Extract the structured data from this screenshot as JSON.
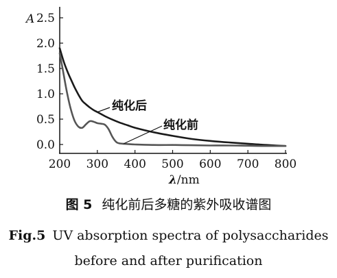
{
  "chart_data": {
    "type": "line",
    "ylabel": "A",
    "xlabel_symbol": "λ",
    "xlabel_unit": "/nm",
    "xlim": [
      200,
      800
    ],
    "ylim": [
      -0.05,
      2.6
    ],
    "xticks": [
      "200",
      "300",
      "400",
      "500",
      "600",
      "700",
      "800"
    ],
    "yticks": [
      "0.0",
      "0.5",
      "1.0",
      "1.5",
      "2.0",
      "2.5"
    ],
    "grid": false,
    "legend": "none",
    "series": [
      {
        "name": "纯化后",
        "color": "#1a1a1a",
        "x": [
          200,
          210,
          220,
          230,
          240,
          250,
          260,
          270,
          280,
          290,
          300,
          320,
          340,
          360,
          380,
          400,
          450,
          500,
          550,
          600,
          650,
          700,
          750,
          800
        ],
        "y": [
          1.9,
          1.65,
          1.45,
          1.28,
          1.12,
          0.98,
          0.86,
          0.79,
          0.73,
          0.68,
          0.64,
          0.56,
          0.49,
          0.43,
          0.38,
          0.33,
          0.24,
          0.17,
          0.11,
          0.07,
          0.04,
          0.015,
          -0.01,
          -0.03
        ]
      },
      {
        "name": "纯化前",
        "color": "#555555",
        "x": [
          200,
          210,
          220,
          230,
          240,
          250,
          260,
          270,
          280,
          290,
          300,
          310,
          320,
          330,
          340,
          350,
          360,
          380,
          400,
          450,
          500,
          550,
          600,
          650,
          700,
          750,
          800
        ],
        "y": [
          1.8,
          1.4,
          1.0,
          0.68,
          0.46,
          0.35,
          0.33,
          0.4,
          0.46,
          0.45,
          0.42,
          0.41,
          0.39,
          0.3,
          0.15,
          0.05,
          0.02,
          0.01,
          0.0,
          -0.01,
          -0.01,
          -0.015,
          -0.02,
          -0.02,
          -0.025,
          -0.03,
          -0.03
        ]
      }
    ],
    "annotations": [
      {
        "text": "纯化后",
        "series": 0,
        "at_x": 300
      },
      {
        "text": "纯化前",
        "series": 1,
        "at_x": 400
      }
    ]
  },
  "caption": {
    "cn_figure_no": "图 5",
    "cn_text": "纯化前后多糖的紫外吸收谱图",
    "en_figure_no": "Fig.5",
    "en_line1": "UV absorption spectra of polysaccharides",
    "en_line2": "before and after purification"
  }
}
